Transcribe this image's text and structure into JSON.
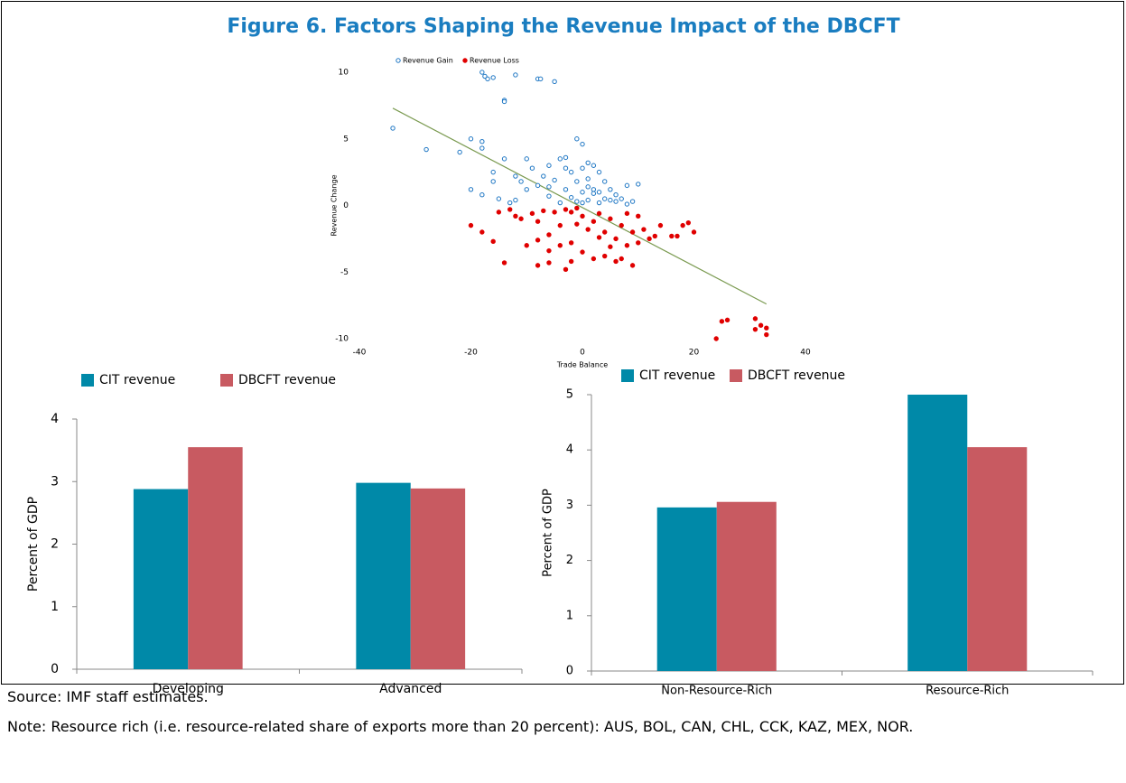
{
  "title": "Figure 6. Factors Shaping the Revenue Impact of the DBCFT",
  "source": "Source: IMF staff estimates.",
  "note": "Note: Resource rich (i.e. resource-related share of exports more than 20 percent): AUS, BOL, CAN, CHL, CCK, KAZ, MEX, NOR.",
  "chart_data": [
    {
      "type": "scatter",
      "xlabel": "Trade Balance",
      "ylabel": "Revenue Change",
      "xlim": [
        -40,
        40
      ],
      "xticks": [
        -40,
        -20,
        0,
        20,
        40
      ],
      "ylim": [
        -10,
        10
      ],
      "yticks": [
        -10,
        -5,
        0,
        5,
        10
      ],
      "legend": "top",
      "series": [
        {
          "name": "Revenue Gain",
          "color": "#1f77c4",
          "filled": false,
          "x": [
            -34,
            -28,
            -18,
            -17,
            -17.5,
            -16,
            -14,
            -14,
            -12,
            -8,
            -7.5,
            -5,
            -20,
            -18,
            -18,
            -22,
            -14,
            -10,
            -16,
            -12,
            -8,
            -6,
            -4,
            -3,
            -1,
            0,
            -2,
            -1,
            0,
            1,
            2,
            3,
            4,
            5,
            6,
            7,
            8,
            10,
            -20,
            -18,
            -15,
            -12,
            -10,
            -6,
            -4,
            -2,
            1,
            2,
            3,
            4,
            6,
            -9,
            -7,
            -5,
            -3,
            -1,
            0,
            1,
            2,
            3,
            0,
            -3,
            1,
            -6,
            -11,
            -13,
            -16,
            9,
            8,
            5
          ],
          "y": [
            5.8,
            4.2,
            10,
            9.5,
            9.7,
            9.6,
            7.9,
            7.8,
            9.8,
            9.5,
            9.5,
            9.3,
            5,
            4.8,
            4.3,
            4,
            3.5,
            3.5,
            2.5,
            2.2,
            1.5,
            3,
            3.5,
            3.6,
            5,
            4.6,
            2.5,
            1.8,
            1,
            2,
            3,
            2.5,
            1.8,
            1.2,
            0.8,
            0.5,
            1.5,
            1.6,
            1.2,
            0.8,
            0.5,
            0.4,
            1.2,
            0.7,
            0.2,
            0.6,
            0.4,
            0.9,
            0.2,
            0.5,
            0.3,
            2.8,
            2.2,
            1.9,
            1.2,
            0.3,
            0.2,
            1.4,
            1.2,
            1,
            2.8,
            2.8,
            3.2,
            1.4,
            1.8,
            0.2,
            1.8,
            0.3,
            0.1,
            0.4
          ]
        },
        {
          "name": "Revenue Loss",
          "color": "#e00000",
          "filled": true,
          "x": [
            24,
            25,
            26,
            31,
            32,
            33,
            33,
            31,
            -20,
            -18,
            -14,
            -8,
            -6,
            -3,
            -10,
            -6,
            -4,
            -2,
            0,
            2,
            4,
            6,
            8,
            10,
            12,
            14,
            16,
            18,
            19,
            20,
            17,
            -12,
            -8,
            -4,
            -2,
            0,
            2,
            4,
            6,
            7,
            9,
            1,
            3,
            5,
            7,
            9,
            -1,
            -3,
            -5,
            -7,
            -9,
            -11,
            -13,
            -15,
            -16,
            11,
            13,
            3,
            -1,
            -6,
            -8,
            5,
            10,
            8,
            -2
          ],
          "y": [
            -10,
            -8.7,
            -8.6,
            -8.5,
            -9,
            -9.2,
            -9.7,
            -9.3,
            -1.5,
            -2,
            -4.3,
            -4.5,
            -4.3,
            -4.8,
            -3,
            -2.2,
            -1.5,
            -0.5,
            -0.8,
            -1.2,
            -2,
            -2.5,
            -3,
            -2.8,
            -2.5,
            -1.5,
            -2.3,
            -1.5,
            -1.3,
            -2,
            -2.3,
            -0.8,
            -1.2,
            -3,
            -2.8,
            -3.5,
            -4,
            -3.8,
            -4.2,
            -4,
            -4.5,
            -1.8,
            -0.6,
            -1,
            -1.5,
            -2,
            -0.2,
            -0.3,
            -0.5,
            -0.4,
            -0.6,
            -1,
            -0.3,
            -0.5,
            -2.7,
            -1.8,
            -2.3,
            -2.4,
            -1.4,
            -3.4,
            -2.6,
            -3.1,
            -0.8,
            -0.6,
            -4.2
          ]
        }
      ],
      "trendline": {
        "color": "#7a9a50",
        "x": [
          -34,
          33
        ],
        "y": [
          7.3,
          -7.4
        ]
      }
    },
    {
      "type": "bar",
      "ylabel": "Percent of GDP",
      "categories": [
        "Developing",
        "Advanced"
      ],
      "ylim": [
        0,
        4
      ],
      "yticks": [
        0,
        1,
        2,
        3,
        4
      ],
      "series": [
        {
          "name": "CIT revenue",
          "color": "#0089a8",
          "values": [
            2.88,
            2.98
          ]
        },
        {
          "name": "DBCFT revenue",
          "color": "#c85a61",
          "values": [
            3.55,
            2.89
          ]
        }
      ]
    },
    {
      "type": "bar",
      "ylabel": "Percent of GDP",
      "categories": [
        "Non-Resource-Rich",
        "Resource-Rich"
      ],
      "ylim": [
        0,
        5
      ],
      "yticks": [
        0,
        1,
        2,
        3,
        4,
        5
      ],
      "series": [
        {
          "name": "CIT revenue",
          "color": "#0089a8",
          "values": [
            2.96,
            5.0
          ]
        },
        {
          "name": "DBCFT revenue",
          "color": "#c85a61",
          "values": [
            3.06,
            4.05
          ]
        }
      ]
    }
  ]
}
